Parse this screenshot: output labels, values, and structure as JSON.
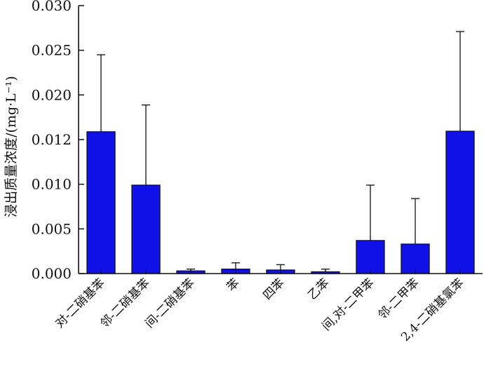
{
  "chart_data": {
    "type": "bar",
    "title": "",
    "xlabel": "",
    "ylabel": "浸出质量浓度/(mg·L⁻¹)",
    "ylim": [
      0,
      0.03
    ],
    "yticks": [
      0.0,
      0.005,
      0.01,
      0.012,
      0.02,
      0.025,
      0.03
    ],
    "ytick_labels": [
      "0.000",
      "0.005",
      "0.010",
      "0.012",
      "0.020",
      "0.025",
      "0.030"
    ],
    "categories": [
      "对-二硝基苯",
      "邻-二硝基苯",
      "间-二硝基苯",
      "苯",
      "四苯",
      "乙苯",
      "间,对-二甲苯",
      "邻-二甲苯",
      "2,4-二硝基氯苯"
    ],
    "values": [
      0.0134,
      0.0099,
      0.0003,
      0.0005,
      0.0004,
      0.0002,
      0.0037,
      0.0033,
      0.0135
    ],
    "error_upper": [
      0.0245,
      0.0182,
      0.0005,
      0.0012,
      0.001,
      0.0005,
      0.0099,
      0.0084,
      0.0271
    ],
    "bar_color": "#1010e8",
    "grid": false
  }
}
